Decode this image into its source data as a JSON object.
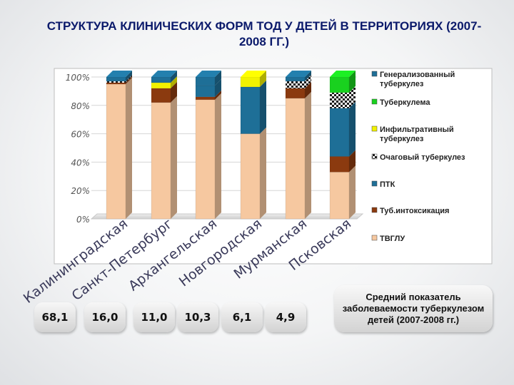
{
  "title": "СТРУКТУРА КЛИНИЧЕСКИХ ФОРМ ТОД У ДЕТЕЙ В ТЕРРИТОРИЯХ (2007-2008 ГГ.)",
  "badges": [
    "68,1",
    "16,0",
    "11,0",
    "10,3",
    "6,1",
    "4,9"
  ],
  "note": "Средний показатель заболеваемости туберкулезом детей (2007-2008 гг.)",
  "chart_data": {
    "type": "bar",
    "stacked": true,
    "percent": true,
    "categories": [
      "Калининградская",
      "Санкт-Петербург",
      "Архангельская",
      "Новгородская",
      "Мурманская",
      "Псковская"
    ],
    "series": [
      {
        "name": "ТВГЛУ",
        "color": "#f6c8a0",
        "values": [
          95,
          82,
          84,
          60,
          85,
          33
        ]
      },
      {
        "name": "Туб.интоксикация",
        "color": "#8b3a0f",
        "values": [
          1,
          10,
          2,
          0,
          7,
          11
        ]
      },
      {
        "name": "ПТК",
        "color": "#1e6f97",
        "values": [
          0,
          0,
          8,
          33,
          0,
          34
        ]
      },
      {
        "name": "Очаговый туберкулез",
        "color": "#ffffff",
        "pattern": true,
        "values": [
          1,
          0,
          0,
          0,
          5,
          11
        ]
      },
      {
        "name": "Инфильтративный туберкулез",
        "color": "#f2f200",
        "values": [
          0,
          4,
          0,
          7,
          0,
          0
        ]
      },
      {
        "name": "Туберкулема",
        "color": "#19d11f",
        "values": [
          0,
          0,
          0,
          0,
          0,
          11
        ]
      },
      {
        "name": "Генерализованный туберкулез",
        "color": "#1e6f97",
        "values": [
          3,
          4,
          6,
          0,
          3,
          0
        ]
      }
    ],
    "legend_order": [
      "Генерализованный туберкулез",
      "Туберкулема",
      "Инфильтративный туберкулез",
      "Очаговый туберкулез",
      "ПТК",
      "Туб.интоксикация",
      "ТВГЛУ"
    ],
    "yticks": [
      "0%",
      "20%",
      "40%",
      "60%",
      "80%",
      "100%"
    ],
    "ylim": [
      0,
      100
    ],
    "legend_position": "right"
  }
}
